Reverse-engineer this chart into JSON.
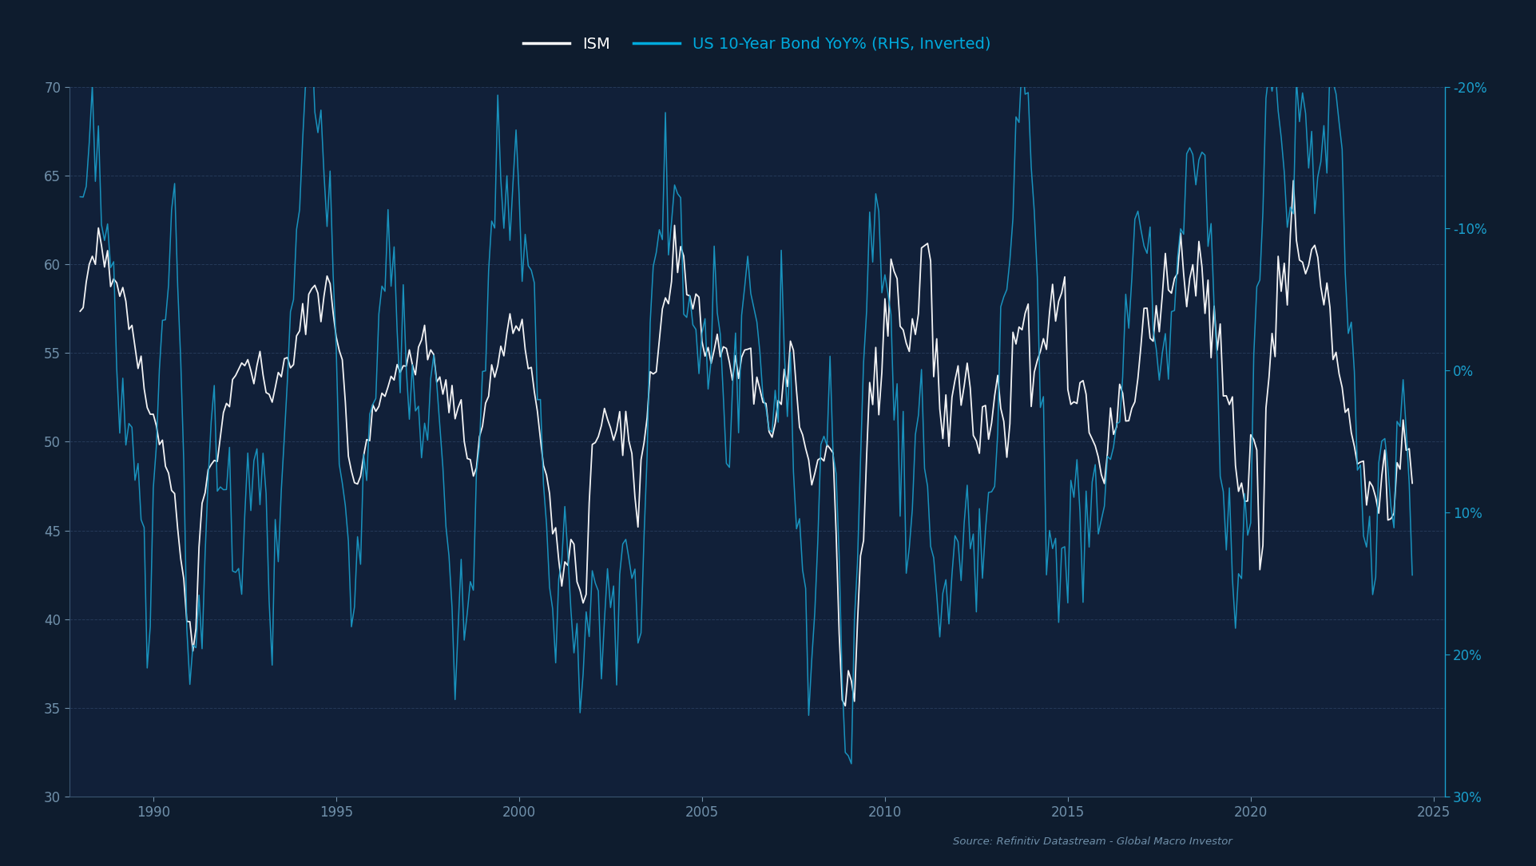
{
  "background_color": "#0e1c2e",
  "plot_bg_color": "#112039",
  "title": "",
  "legend_items": [
    "ISM",
    "US 10-Year Bond YoY% (RHS, Inverted)"
  ],
  "legend_colors": [
    "#ffffff",
    "#00aadd"
  ],
  "source_text": "Source: Refinitiv Datastream - Global Macro Investor",
  "left_ylim": [
    30,
    70
  ],
  "left_yticks": [
    30,
    35,
    40,
    45,
    50,
    55,
    60,
    65,
    70
  ],
  "right_yticks_display": [
    -20,
    -10,
    0,
    10,
    20,
    30
  ],
  "right_ytick_labels": [
    "-20%",
    "-10%",
    "0%",
    "10%",
    "20%",
    "30%"
  ],
  "xlim_start": 1987.7,
  "xlim_end": 2025.3,
  "xticks": [
    1990,
    1995,
    2000,
    2005,
    2010,
    2015,
    2020,
    2025
  ],
  "ism_color": "#ffffff",
  "bond_color": "#1a9fcc",
  "grid_color": "#2a4060",
  "tick_color": "#7090aa",
  "spine_color": "#3a5570"
}
